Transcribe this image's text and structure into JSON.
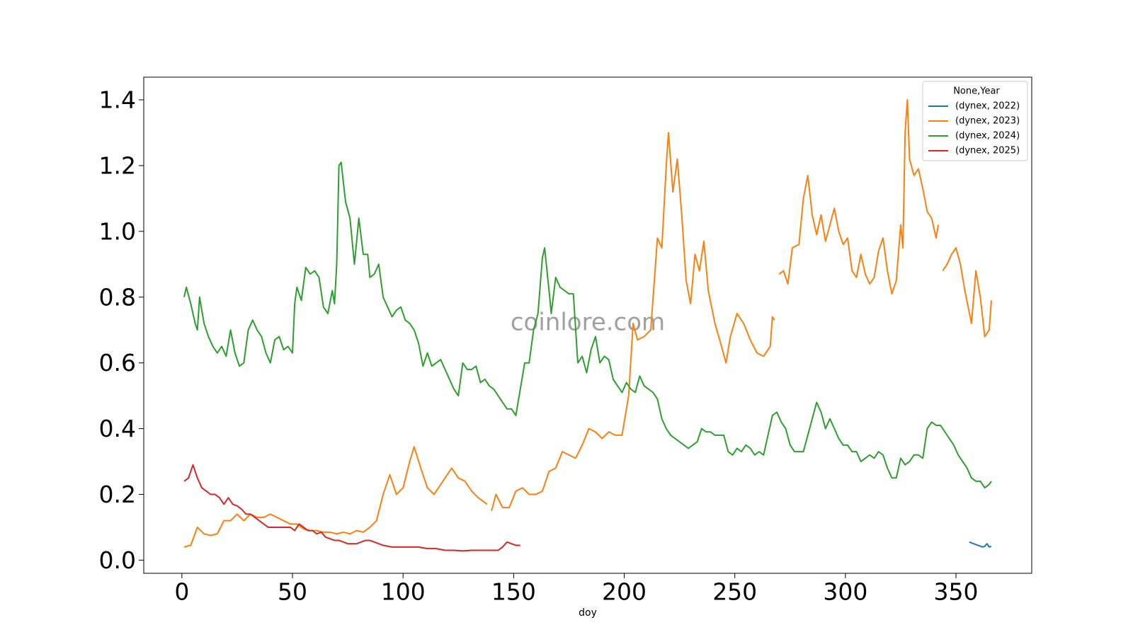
{
  "chart_data": {
    "type": "line",
    "watermark": "coinlore.com",
    "xlabel": "doy",
    "legend_title": "None,Year",
    "legend_position": "upper right",
    "xlim": [
      -17.25,
      384.25
    ],
    "ylim": [
      -0.04,
      1.469
    ],
    "xticks": [
      0,
      50,
      100,
      150,
      200,
      250,
      300,
      350
    ],
    "yticks": [
      {
        "value": 0,
        "label": "0.0"
      },
      0.2,
      0.4,
      0.6,
      0.8,
      {
        "value": 1,
        "label": "1.0"
      },
      1.2,
      1.4
    ],
    "series": [
      {
        "name": "(dynex, 2022)",
        "color": "#1f77b4",
        "x": [
          356,
          358,
          360,
          362,
          363,
          364,
          365,
          366
        ],
        "values": [
          0.055,
          0.05,
          0.045,
          0.04,
          0.042,
          0.05,
          0.04,
          0.042
        ]
      },
      {
        "name": "(dynex, 2023)",
        "color": "#ff7f0e",
        "x": [
          1,
          4,
          7,
          10,
          13,
          16,
          19,
          22,
          25,
          28,
          31,
          34,
          37,
          40,
          43,
          46,
          49,
          52,
          55,
          58,
          61,
          64,
          67,
          70,
          73,
          76,
          79,
          82,
          85,
          88,
          91,
          94,
          97,
          100,
          103,
          105,
          108,
          111,
          114,
          117,
          120,
          122,
          125,
          128,
          131,
          134,
          136,
          138,
          139,
          140,
          142,
          145,
          148,
          151,
          154,
          157,
          160,
          163,
          166,
          169,
          172,
          175,
          178,
          181,
          184,
          187,
          190,
          193,
          196,
          199,
          202,
          204,
          206,
          209,
          212,
          215,
          217,
          219,
          220,
          222,
          224,
          226,
          228,
          230,
          232,
          234,
          236,
          238,
          241,
          244,
          246,
          248,
          251,
          254,
          257,
          260,
          263,
          266,
          267,
          268,
          269,
          270,
          272,
          274,
          276,
          279,
          281,
          283,
          285,
          287,
          289,
          291,
          293,
          295,
          297,
          299,
          301,
          303,
          305,
          307,
          309,
          311,
          313,
          315,
          317,
          319,
          321,
          323,
          325,
          326,
          327,
          328,
          329,
          331,
          333,
          335,
          337,
          339,
          341,
          342,
          343,
          344,
          346,
          348,
          350,
          352,
          354,
          357,
          359,
          361,
          363,
          365,
          366
        ],
        "values": [
          0.04,
          0.045,
          0.1,
          0.08,
          0.075,
          0.08,
          0.12,
          0.12,
          0.14,
          0.12,
          0.14,
          0.13,
          0.13,
          0.14,
          0.13,
          0.12,
          0.11,
          0.11,
          0.095,
          0.09,
          0.09,
          0.085,
          0.085,
          0.08,
          0.085,
          0.08,
          0.09,
          0.085,
          0.1,
          0.12,
          0.2,
          0.26,
          0.2,
          0.22,
          0.3,
          0.345,
          0.28,
          0.22,
          0.2,
          0.23,
          0.26,
          0.28,
          0.25,
          0.24,
          0.21,
          0.19,
          0.18,
          0.17,
          null,
          0.15,
          0.2,
          0.16,
          0.16,
          0.21,
          0.22,
          0.2,
          0.2,
          0.21,
          0.27,
          0.28,
          0.33,
          0.32,
          0.31,
          0.35,
          0.4,
          0.39,
          0.37,
          0.39,
          0.38,
          0.38,
          0.5,
          0.72,
          0.67,
          0.68,
          0.7,
          0.98,
          0.95,
          1.2,
          1.3,
          1.12,
          1.22,
          1.05,
          0.85,
          0.78,
          0.93,
          0.88,
          0.97,
          0.82,
          0.72,
          0.65,
          0.6,
          0.68,
          0.75,
          0.72,
          0.67,
          0.63,
          0.62,
          0.65,
          0.74,
          0.73,
          null,
          0.87,
          0.88,
          0.84,
          0.95,
          0.96,
          1.1,
          1.17,
          1.05,
          0.99,
          1.05,
          0.97,
          1.02,
          1.07,
          1.0,
          0.96,
          0.98,
          0.88,
          0.86,
          0.93,
          0.87,
          0.84,
          0.86,
          0.94,
          0.98,
          0.88,
          0.81,
          0.85,
          1.02,
          0.95,
          1.3,
          1.4,
          1.22,
          1.17,
          1.19,
          1.13,
          1.06,
          1.04,
          0.98,
          1.02,
          null,
          0.88,
          0.9,
          0.93,
          0.95,
          0.9,
          0.82,
          0.72,
          0.88,
          0.8,
          0.68,
          0.7,
          0.79
        ]
      },
      {
        "name": "(dynex, 2024)",
        "color": "#2ca02c",
        "x": [
          1,
          2,
          4,
          6,
          7,
          8,
          10,
          12,
          14,
          16,
          18,
          20,
          22,
          24,
          26,
          28,
          30,
          32,
          34,
          36,
          38,
          40,
          42,
          44,
          46,
          48,
          50,
          51,
          52,
          54,
          56,
          58,
          60,
          62,
          64,
          66,
          68,
          69,
          70,
          71,
          72,
          74,
          76,
          78,
          80,
          82,
          84,
          85,
          87,
          89,
          91,
          93,
          95,
          97,
          99,
          101,
          103,
          105,
          107,
          109,
          111,
          113,
          115,
          117,
          119,
          121,
          123,
          125,
          127,
          129,
          131,
          133,
          135,
          137,
          139,
          141,
          143,
          145,
          147,
          149,
          151,
          153,
          155,
          157,
          159,
          161,
          163,
          164,
          166,
          167,
          169,
          171,
          173,
          175,
          177,
          179,
          181,
          183,
          185,
          187,
          189,
          191,
          193,
          195,
          197,
          199,
          201,
          203,
          205,
          207,
          209,
          211,
          213,
          215,
          217,
          219,
          221,
          223,
          225,
          227,
          229,
          231,
          233,
          235,
          237,
          239,
          241,
          243,
          245,
          247,
          249,
          251,
          253,
          255,
          257,
          259,
          261,
          263,
          265,
          267,
          269,
          271,
          273,
          275,
          277,
          279,
          281,
          283,
          285,
          287,
          289,
          291,
          293,
          295,
          297,
          299,
          301,
          303,
          305,
          307,
          309,
          311,
          313,
          315,
          317,
          319,
          321,
          323,
          325,
          327,
          329,
          331,
          333,
          335,
          337,
          339,
          341,
          343,
          345,
          347,
          349,
          351,
          353,
          355,
          357,
          359,
          361,
          363,
          365,
          366
        ],
        "values": [
          0.8,
          0.83,
          0.78,
          0.72,
          0.7,
          0.8,
          0.72,
          0.68,
          0.65,
          0.63,
          0.65,
          0.62,
          0.7,
          0.63,
          0.59,
          0.6,
          0.7,
          0.73,
          0.7,
          0.68,
          0.63,
          0.6,
          0.67,
          0.68,
          0.64,
          0.65,
          0.63,
          0.78,
          0.83,
          0.79,
          0.89,
          0.87,
          0.88,
          0.86,
          0.77,
          0.75,
          0.82,
          0.78,
          0.9,
          1.2,
          1.21,
          1.09,
          1.04,
          0.9,
          1.04,
          0.93,
          0.93,
          0.86,
          0.87,
          0.9,
          0.8,
          0.77,
          0.74,
          0.76,
          0.77,
          0.73,
          0.72,
          0.7,
          0.66,
          0.59,
          0.63,
          0.59,
          0.6,
          0.61,
          0.58,
          0.55,
          0.52,
          0.5,
          0.6,
          0.58,
          0.58,
          0.59,
          0.54,
          0.55,
          0.53,
          0.52,
          0.5,
          0.48,
          0.46,
          0.46,
          0.44,
          0.52,
          0.6,
          0.6,
          0.7,
          0.75,
          0.92,
          0.95,
          0.82,
          0.75,
          0.86,
          0.83,
          0.82,
          0.81,
          0.81,
          0.6,
          0.62,
          0.57,
          0.64,
          0.68,
          0.6,
          0.62,
          0.61,
          0.55,
          0.53,
          0.51,
          0.54,
          0.52,
          0.51,
          0.56,
          0.53,
          0.52,
          0.51,
          0.49,
          0.43,
          0.4,
          0.38,
          0.37,
          0.36,
          0.35,
          0.34,
          0.35,
          0.36,
          0.4,
          0.39,
          0.39,
          0.38,
          0.38,
          0.38,
          0.33,
          0.32,
          0.34,
          0.33,
          0.35,
          0.34,
          0.32,
          0.33,
          0.32,
          0.38,
          0.44,
          0.45,
          0.42,
          0.4,
          0.35,
          0.33,
          0.33,
          0.33,
          0.38,
          0.43,
          0.48,
          0.45,
          0.4,
          0.43,
          0.4,
          0.37,
          0.35,
          0.35,
          0.33,
          0.33,
          0.3,
          0.31,
          0.32,
          0.31,
          0.33,
          0.32,
          0.28,
          0.25,
          0.25,
          0.31,
          0.29,
          0.3,
          0.32,
          0.32,
          0.31,
          0.4,
          0.42,
          0.41,
          0.41,
          0.39,
          0.37,
          0.35,
          0.32,
          0.3,
          0.28,
          0.25,
          0.24,
          0.24,
          0.22,
          0.23,
          0.24
        ]
      },
      {
        "name": "(dynex, 2025)",
        "color": "#d62728",
        "x": [
          1,
          3,
          5,
          7,
          9,
          11,
          13,
          15,
          17,
          19,
          21,
          23,
          25,
          27,
          29,
          31,
          33,
          35,
          37,
          39,
          41,
          43,
          45,
          47,
          49,
          51,
          53,
          55,
          57,
          59,
          61,
          63,
          65,
          67,
          69,
          71,
          73,
          75,
          77,
          79,
          81,
          83,
          85,
          87,
          89,
          91,
          95,
          99,
          103,
          107,
          111,
          115,
          119,
          123,
          127,
          131,
          135,
          139,
          143,
          145,
          147,
          149,
          151,
          153
        ],
        "values": [
          0.24,
          0.25,
          0.29,
          0.25,
          0.22,
          0.21,
          0.2,
          0.2,
          0.19,
          0.17,
          0.19,
          0.17,
          0.165,
          0.155,
          0.14,
          0.14,
          0.13,
          0.12,
          0.11,
          0.1,
          0.1,
          0.1,
          0.1,
          0.1,
          0.1,
          0.09,
          0.11,
          0.1,
          0.09,
          0.09,
          0.08,
          0.085,
          0.07,
          0.065,
          0.06,
          0.06,
          0.055,
          0.05,
          0.05,
          0.05,
          0.055,
          0.06,
          0.06,
          0.055,
          0.05,
          0.045,
          0.04,
          0.04,
          0.04,
          0.04,
          0.035,
          0.035,
          0.03,
          0.03,
          0.028,
          0.03,
          0.03,
          0.03,
          0.03,
          0.04,
          0.055,
          0.05,
          0.045,
          0.045
        ]
      }
    ]
  }
}
